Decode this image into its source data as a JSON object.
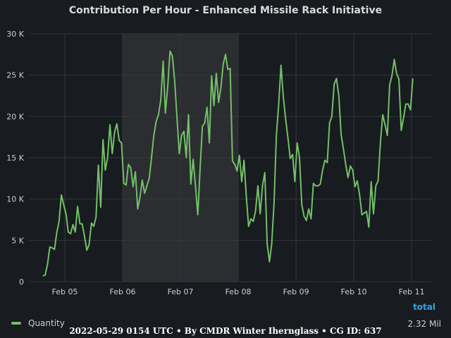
{
  "chart_data": {
    "type": "line",
    "title": "Contribution Per Hour - Enhanced Missile Rack Initiative",
    "x_categories": [
      "Feb 05",
      "Feb 06",
      "Feb 07",
      "Feb 08",
      "Feb 09",
      "Feb 10",
      "Feb 11"
    ],
    "y_ticks": [
      "0",
      "5 K",
      "10 K",
      "15 K",
      "20 K",
      "25 K",
      "30 K"
    ],
    "ylim": [
      0,
      30000
    ],
    "xlim_days": [
      4.39,
      11.34
    ],
    "grid": true,
    "legend_position": "bottom-left",
    "highlight_region": {
      "from_day": 6.0,
      "to_day": 8.0
    },
    "series": [
      {
        "name": "Quantity",
        "color": "#73bf69",
        "points": [
          [
            4.62,
            700
          ],
          [
            4.66,
            800
          ],
          [
            4.7,
            2100
          ],
          [
            4.74,
            4200
          ],
          [
            4.78,
            4100
          ],
          [
            4.82,
            3900
          ],
          [
            4.86,
            5900
          ],
          [
            4.9,
            7300
          ],
          [
            4.94,
            10500
          ],
          [
            4.98,
            9300
          ],
          [
            5.02,
            8200
          ],
          [
            5.06,
            6000
          ],
          [
            5.1,
            5800
          ],
          [
            5.14,
            6900
          ],
          [
            5.18,
            6000
          ],
          [
            5.22,
            9100
          ],
          [
            5.26,
            7000
          ],
          [
            5.3,
            7000
          ],
          [
            5.34,
            5500
          ],
          [
            5.38,
            3800
          ],
          [
            5.42,
            4500
          ],
          [
            5.46,
            7100
          ],
          [
            5.5,
            6700
          ],
          [
            5.54,
            7800
          ],
          [
            5.58,
            14100
          ],
          [
            5.62,
            9000
          ],
          [
            5.66,
            17200
          ],
          [
            5.7,
            13500
          ],
          [
            5.74,
            15000
          ],
          [
            5.78,
            19000
          ],
          [
            5.82,
            15500
          ],
          [
            5.86,
            18100
          ],
          [
            5.9,
            19100
          ],
          [
            5.94,
            17100
          ],
          [
            5.98,
            16800
          ],
          [
            6.02,
            11900
          ],
          [
            6.06,
            11700
          ],
          [
            6.1,
            14200
          ],
          [
            6.14,
            13800
          ],
          [
            6.18,
            11500
          ],
          [
            6.22,
            13300
          ],
          [
            6.26,
            8800
          ],
          [
            6.3,
            10200
          ],
          [
            6.34,
            12300
          ],
          [
            6.38,
            10700
          ],
          [
            6.42,
            11600
          ],
          [
            6.46,
            12500
          ],
          [
            6.5,
            15100
          ],
          [
            6.54,
            17700
          ],
          [
            6.58,
            19400
          ],
          [
            6.62,
            20200
          ],
          [
            6.66,
            22000
          ],
          [
            6.7,
            26700
          ],
          [
            6.74,
            20400
          ],
          [
            6.78,
            23600
          ],
          [
            6.82,
            27900
          ],
          [
            6.86,
            27300
          ],
          [
            6.9,
            24300
          ],
          [
            6.94,
            19900
          ],
          [
            6.98,
            15500
          ],
          [
            7.02,
            17700
          ],
          [
            7.06,
            18200
          ],
          [
            7.1,
            15000
          ],
          [
            7.14,
            20200
          ],
          [
            7.18,
            11800
          ],
          [
            7.22,
            14800
          ],
          [
            7.26,
            11600
          ],
          [
            7.3,
            8100
          ],
          [
            7.34,
            13600
          ],
          [
            7.38,
            18800
          ],
          [
            7.42,
            19200
          ],
          [
            7.46,
            21100
          ],
          [
            7.5,
            16800
          ],
          [
            7.54,
            24900
          ],
          [
            7.58,
            21300
          ],
          [
            7.62,
            25200
          ],
          [
            7.66,
            21700
          ],
          [
            7.7,
            23500
          ],
          [
            7.74,
            26300
          ],
          [
            7.78,
            27500
          ],
          [
            7.82,
            25700
          ],
          [
            7.86,
            25800
          ],
          [
            7.9,
            14600
          ],
          [
            7.94,
            14200
          ],
          [
            7.98,
            13400
          ],
          [
            8.02,
            15300
          ],
          [
            8.06,
            12100
          ],
          [
            8.1,
            14700
          ],
          [
            8.14,
            10200
          ],
          [
            8.18,
            6700
          ],
          [
            8.22,
            7600
          ],
          [
            8.26,
            7300
          ],
          [
            8.3,
            8600
          ],
          [
            8.34,
            11600
          ],
          [
            8.38,
            8200
          ],
          [
            8.42,
            11600
          ],
          [
            8.46,
            13200
          ],
          [
            8.5,
            4600
          ],
          [
            8.54,
            2400
          ],
          [
            8.58,
            4600
          ],
          [
            8.62,
            9500
          ],
          [
            8.66,
            17700
          ],
          [
            8.7,
            21500
          ],
          [
            8.74,
            26200
          ],
          [
            8.78,
            22400
          ],
          [
            8.82,
            19700
          ],
          [
            8.86,
            17400
          ],
          [
            8.9,
            14900
          ],
          [
            8.94,
            15400
          ],
          [
            8.98,
            12100
          ],
          [
            9.02,
            16800
          ],
          [
            9.06,
            15000
          ],
          [
            9.1,
            9300
          ],
          [
            9.14,
            7900
          ],
          [
            9.18,
            7400
          ],
          [
            9.22,
            8800
          ],
          [
            9.26,
            7600
          ],
          [
            9.3,
            11900
          ],
          [
            9.34,
            11600
          ],
          [
            9.38,
            11600
          ],
          [
            9.42,
            11800
          ],
          [
            9.46,
            13500
          ],
          [
            9.5,
            14700
          ],
          [
            9.54,
            14400
          ],
          [
            9.58,
            19200
          ],
          [
            9.62,
            20000
          ],
          [
            9.66,
            23900
          ],
          [
            9.7,
            24600
          ],
          [
            9.74,
            22500
          ],
          [
            9.78,
            17800
          ],
          [
            9.82,
            16100
          ],
          [
            9.86,
            14200
          ],
          [
            9.9,
            12600
          ],
          [
            9.94,
            14000
          ],
          [
            9.98,
            13500
          ],
          [
            10.02,
            11500
          ],
          [
            10.06,
            12200
          ],
          [
            10.1,
            10500
          ],
          [
            10.14,
            8100
          ],
          [
            10.18,
            8300
          ],
          [
            10.22,
            8500
          ],
          [
            10.26,
            6600
          ],
          [
            10.3,
            12100
          ],
          [
            10.34,
            8200
          ],
          [
            10.38,
            11600
          ],
          [
            10.42,
            12200
          ],
          [
            10.46,
            16800
          ],
          [
            10.5,
            20200
          ],
          [
            10.54,
            19000
          ],
          [
            10.58,
            17700
          ],
          [
            10.62,
            23800
          ],
          [
            10.66,
            24900
          ],
          [
            10.7,
            26900
          ],
          [
            10.74,
            25200
          ],
          [
            10.78,
            24500
          ],
          [
            10.82,
            18300
          ],
          [
            10.86,
            19800
          ],
          [
            10.9,
            21500
          ],
          [
            10.94,
            21500
          ],
          [
            10.98,
            20800
          ],
          [
            11.02,
            24600
          ]
        ]
      }
    ]
  },
  "legend": {
    "header": "total",
    "header_color": "#33a2e5",
    "items": [
      {
        "label": "Quantity",
        "color": "#73bf69",
        "total": "2.32 Mil"
      }
    ]
  },
  "footer": "2022-05-29 0154 UTC • By CMDR Winter Ihernglass • CG ID: 637"
}
